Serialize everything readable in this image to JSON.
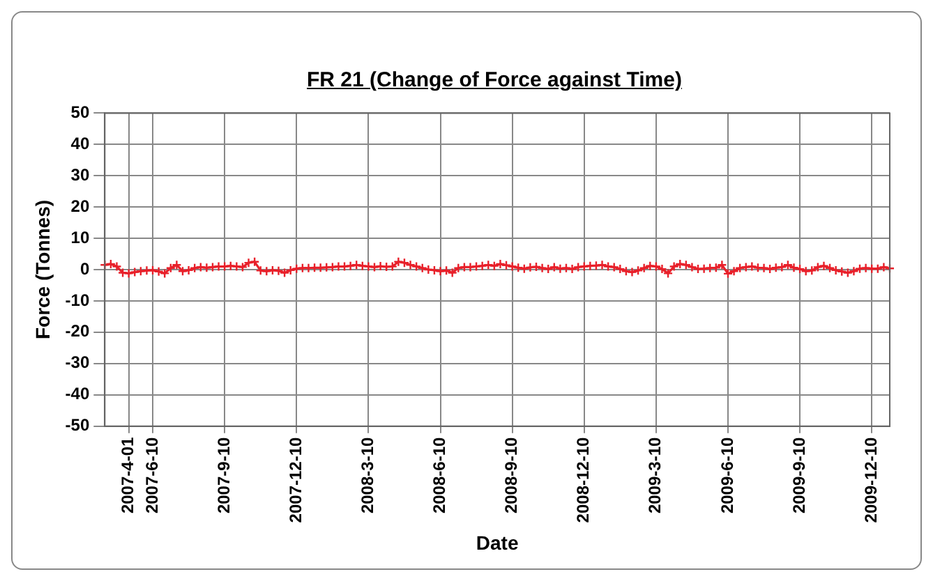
{
  "chart_data": {
    "type": "line",
    "title": "FR 21 (Change of Force against Time)",
    "xlabel": "Date",
    "ylabel": "Force (Tonnes)",
    "categories": [
      null,
      null,
      null,
      null,
      "2007-4-01",
      null,
      null,
      null,
      "2007-6-10",
      null,
      null,
      null,
      null,
      null,
      null,
      null,
      null,
      null,
      null,
      null,
      "2007-9-10",
      null,
      null,
      null,
      null,
      null,
      null,
      null,
      null,
      null,
      null,
      null,
      "2007-12-10",
      null,
      null,
      null,
      null,
      null,
      null,
      null,
      null,
      null,
      null,
      null,
      "2008-3-10",
      null,
      null,
      null,
      null,
      null,
      null,
      null,
      null,
      null,
      null,
      null,
      "2008-6-10",
      null,
      null,
      null,
      null,
      null,
      null,
      null,
      null,
      null,
      null,
      null,
      "2008-9-10",
      null,
      null,
      null,
      null,
      null,
      null,
      null,
      null,
      null,
      null,
      null,
      "2008-12-10",
      null,
      null,
      null,
      null,
      null,
      null,
      null,
      null,
      null,
      null,
      null,
      "2009-3-10",
      null,
      null,
      null,
      null,
      null,
      null,
      null,
      null,
      null,
      null,
      null,
      "2009-6-10",
      null,
      null,
      null,
      null,
      null,
      null,
      null,
      null,
      null,
      null,
      null,
      "2009-9-10",
      null,
      null,
      null,
      null,
      null,
      null,
      null,
      null,
      null,
      null,
      null,
      "2009-12-10",
      null,
      null,
      null
    ],
    "series": [
      {
        "color": "#e8202a",
        "values": [
          1.5,
          1.8,
          1,
          -1,
          -1.2,
          -0.8,
          -0.5,
          -0.3,
          -0.2,
          -0.6,
          -1.2,
          0.5,
          1.5,
          -0.5,
          -0.2,
          0.5,
          0.8,
          0.6,
          0.8,
          1,
          1,
          1.2,
          1,
          0.8,
          2.2,
          2.5,
          -0.3,
          -0.5,
          -0.2,
          -0.4,
          -1,
          -0.2,
          0.3,
          0.5,
          0.5,
          0.6,
          0.6,
          0.7,
          0.8,
          1,
          1,
          1.2,
          1.5,
          1.2,
          1,
          0.8,
          1.1,
          0.9,
          1,
          2.5,
          2.2,
          1.5,
          1,
          0.5,
          0,
          -0.2,
          -0.5,
          -0.3,
          -1,
          0.5,
          0.8,
          0.8,
          1,
          1.2,
          1.5,
          1.2,
          1.8,
          1.4,
          1,
          0.6,
          0.3,
          0.7,
          0.9,
          0.5,
          0.2,
          0.8,
          0.3,
          0.5,
          0.2,
          0.8,
          1,
          1.2,
          1.3,
          1.5,
          1,
          0.8,
          0.2,
          -0.5,
          -0.8,
          -0.3,
          0.5,
          1.2,
          1,
          0.2,
          -1.2,
          1,
          1.8,
          1.5,
          0.8,
          0.2,
          0.3,
          0.5,
          0.6,
          1.5,
          -1.3,
          -0.5,
          0.5,
          0.8,
          1,
          0.6,
          0.5,
          0.2,
          0.6,
          0.8,
          1.5,
          0.6,
          0.2,
          -0.5,
          -0.3,
          0.8,
          1.2,
          0.5,
          -0.2,
          -0.6,
          -1,
          -0.5,
          0.3,
          0.5,
          0.3,
          0.3,
          0.8,
          0.4
        ]
      }
    ],
    "ylim": [
      -50,
      50
    ],
    "yticks": [
      -50,
      -40,
      -30,
      -20,
      -10,
      0,
      10,
      20,
      30,
      40,
      50
    ],
    "grid": true,
    "legend": false,
    "marker": "cross",
    "line_style": "solid"
  }
}
